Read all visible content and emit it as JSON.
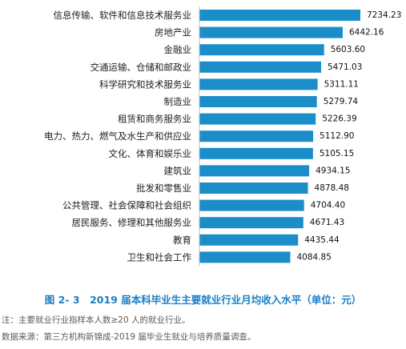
{
  "chart_data": {
    "type": "bar",
    "orientation": "horizontal",
    "title": "图 2- 3　2019 届本科毕业生主要就业行业月均收入水平（单位：元）",
    "categories": [
      "信息传输、软件和信息技术服务业",
      "房地产业",
      "金融业",
      "交通运输、仓储和邮政业",
      "科学研究和技术服务业",
      "制造业",
      "租赁和商务服务业",
      "电力、热力、燃气及水生产和供应业",
      "文化、体育和娱乐业",
      "建筑业",
      "批发和零售业",
      "公共管理、社会保障和社会组织",
      "居民服务、修理和其他服务业",
      "教育",
      "卫生和社会工作"
    ],
    "values": [
      7234.23,
      6442.16,
      5603.6,
      5471.03,
      5311.11,
      5279.74,
      5226.39,
      5112.9,
      5105.15,
      4934.15,
      4878.48,
      4704.4,
      4671.43,
      4435.44,
      4084.85
    ],
    "value_labels": [
      "7234.23",
      "6442.16",
      "5603.60",
      "5471.03",
      "5311.11",
      "5279.74",
      "5226.39",
      "5112.90",
      "5105.15",
      "4934.15",
      "4878.48",
      "4704.40",
      "4671.43",
      "4435.44",
      "4084.85"
    ],
    "bar_color": "#1b8ec9",
    "xlim": [
      0,
      7234.23
    ],
    "grid": false,
    "legend": "none"
  },
  "notes": {
    "note1": "注：主要就业行业指样本人数≥20 人的就业行业。",
    "note2": "数据来源：第三方机构新锦成-2019 届毕业生就业与培养质量调查。"
  },
  "colors": {
    "caption": "#1a80c6",
    "note_text": "#5a5a5a"
  }
}
